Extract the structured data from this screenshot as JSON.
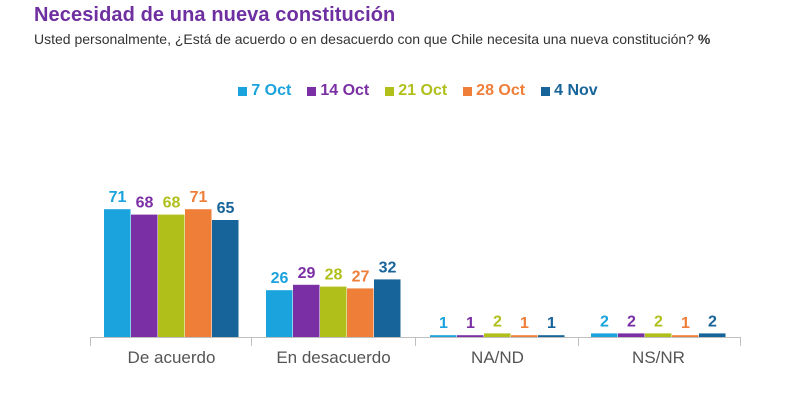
{
  "chart_data": {
    "type": "bar",
    "title": "Necesidad de una nueva constitución",
    "subtitle": "Usted personalmente, ¿Está de acuerdo o en desacuerdo con que Chile necesita una nueva constitución?",
    "unit": "%",
    "categories": [
      "De acuerdo",
      "En desacuerdo",
      "NA/ND",
      "NS/NR"
    ],
    "series": [
      {
        "name": "7 Oct",
        "color": "#1aa3dc",
        "values": [
          71,
          26,
          1,
          2
        ]
      },
      {
        "name": "14 Oct",
        "color": "#7b2fa5",
        "values": [
          68,
          29,
          1,
          2
        ]
      },
      {
        "name": "21 Oct",
        "color": "#b0bf1a",
        "values": [
          68,
          28,
          2,
          2
        ]
      },
      {
        "name": "28 Oct",
        "color": "#ef7e39",
        "values": [
          71,
          27,
          1,
          1
        ]
      },
      {
        "name": "4 Nov",
        "color": "#17649a",
        "values": [
          65,
          32,
          1,
          2
        ]
      }
    ],
    "ylim": [
      0,
      80
    ],
    "grid": false,
    "legend_position": "top"
  }
}
